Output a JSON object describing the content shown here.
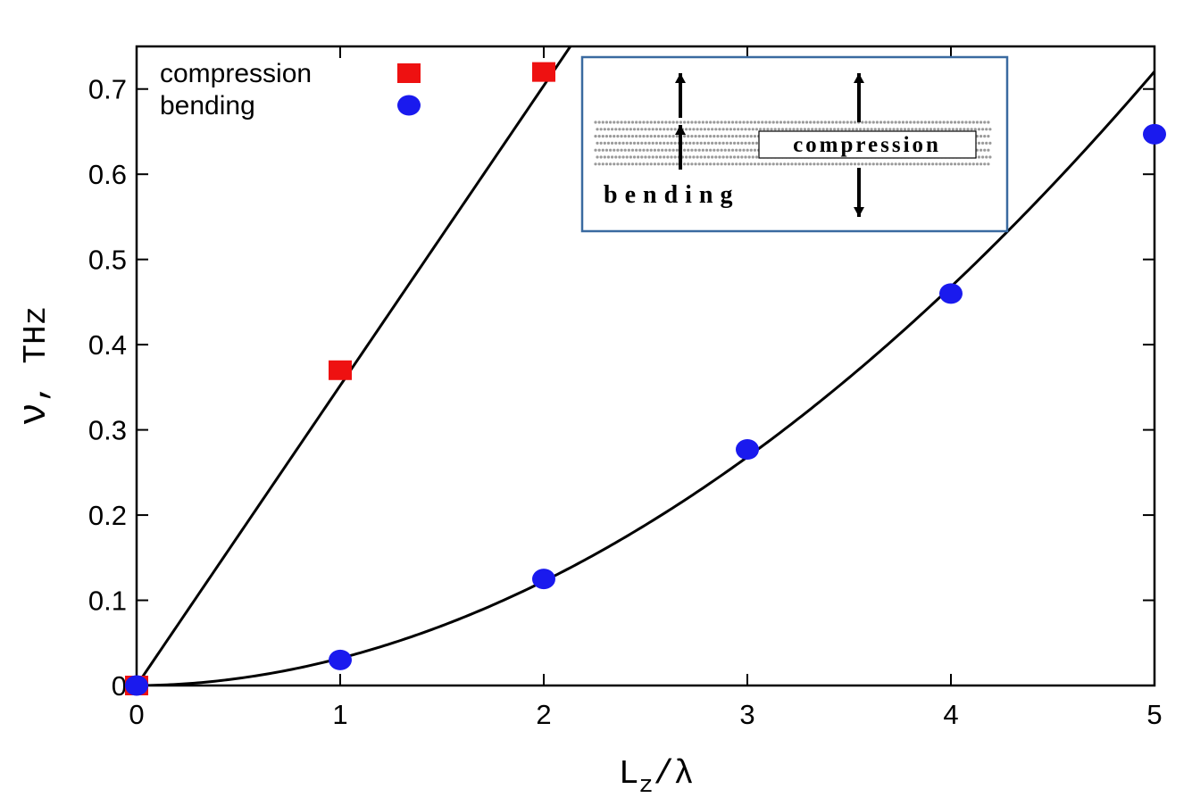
{
  "chart_data": {
    "type": "scatter",
    "xlabel": {
      "main": "L",
      "sub": "z",
      "rest": "/λ"
    },
    "ylabel": {
      "symbol": "ν",
      "rest": ", THz"
    },
    "xlim": [
      0,
      5
    ],
    "ylim": [
      0,
      0.75
    ],
    "xticks": [
      "0",
      "1",
      "2",
      "3",
      "4",
      "5"
    ],
    "yticks": [
      "0",
      "0.1",
      "0.2",
      "0.3",
      "0.4",
      "0.5",
      "0.6",
      "0.7"
    ],
    "grid": false,
    "legend_position": "top-left",
    "series": [
      {
        "name": "compression",
        "marker": "square",
        "color": "#ee1111",
        "x": [
          0,
          1,
          2
        ],
        "y": [
          0,
          0.37,
          0.72
        ]
      },
      {
        "name": "bending",
        "marker": "circle",
        "color": "#1a1aee",
        "x": [
          0,
          1,
          2,
          3,
          4,
          5
        ],
        "y": [
          0,
          0.03,
          0.125,
          0.277,
          0.46,
          0.647
        ]
      }
    ],
    "fits": [
      {
        "series": "compression",
        "form": "linear",
        "slope": 0.352
      },
      {
        "series": "bending",
        "form": "power",
        "coefficient": 0.032,
        "exponent": 1.935
      }
    ],
    "inset": {
      "labels": {
        "compression": "compression",
        "bending": "bending"
      },
      "frame_color": "#3a6aa0"
    }
  }
}
